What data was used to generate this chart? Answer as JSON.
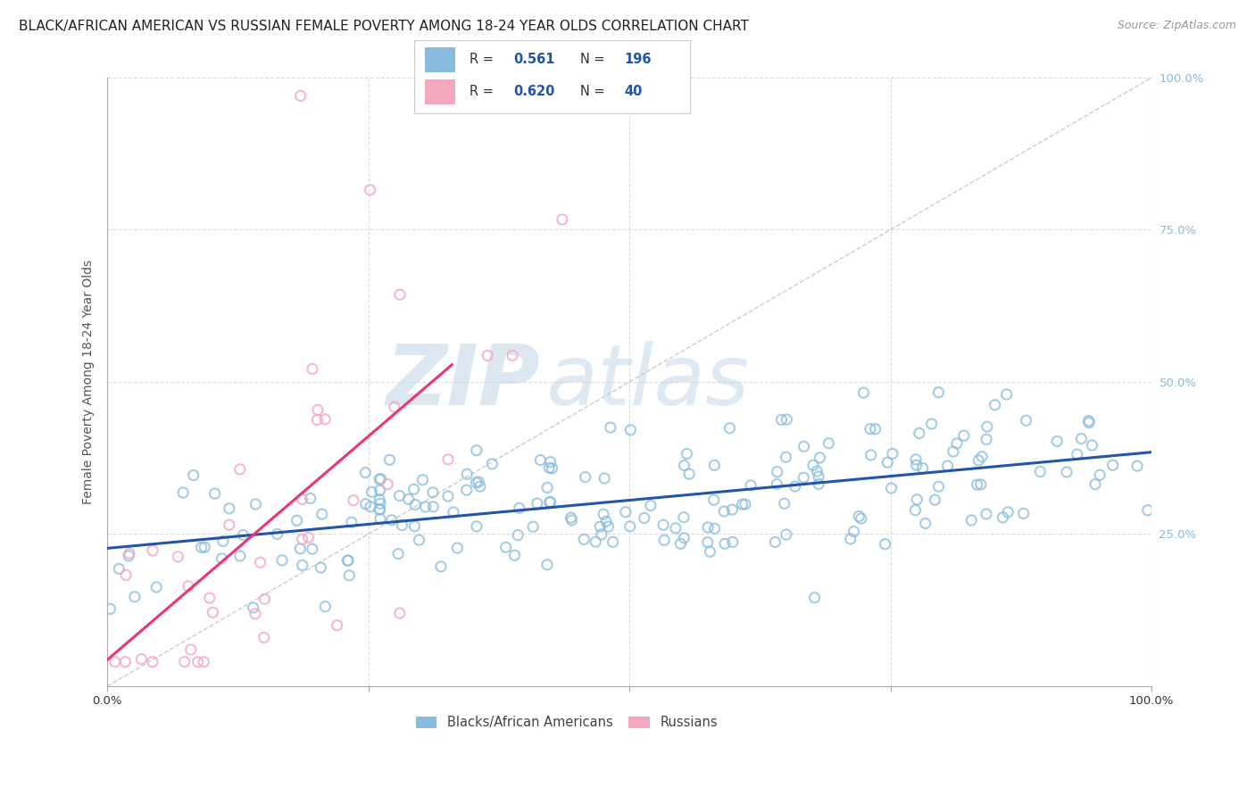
{
  "title": "BLACK/AFRICAN AMERICAN VS RUSSIAN FEMALE POVERTY AMONG 18-24 YEAR OLDS CORRELATION CHART",
  "source": "Source: ZipAtlas.com",
  "ylabel": "Female Poverty Among 18-24 Year Olds",
  "xlim": [
    0,
    1
  ],
  "ylim": [
    0,
    1
  ],
  "blue_color": "#88bbdd",
  "blue_edge_color": "#88bbdd",
  "pink_color": "#f4a8be",
  "pink_edge_color": "#f4a8be",
  "blue_line_color": "#2255aa",
  "pink_line_color": "#ee3377",
  "diagonal_color": "#cccccc",
  "watermark_zip": "ZIP",
  "watermark_atlas": "atlas",
  "legend_blue_r": "0.561",
  "legend_blue_n": "196",
  "legend_pink_r": "0.620",
  "legend_pink_n": "40",
  "background_color": "#ffffff",
  "grid_color": "#dddddd",
  "title_fontsize": 11,
  "axis_label_fontsize": 10,
  "tick_fontsize": 9.5,
  "source_fontsize": 9,
  "legend_label_color": "#333333",
  "legend_value_color": "#2255aa",
  "ytick_color": "#88bbdd",
  "xtick_color": "#333333"
}
